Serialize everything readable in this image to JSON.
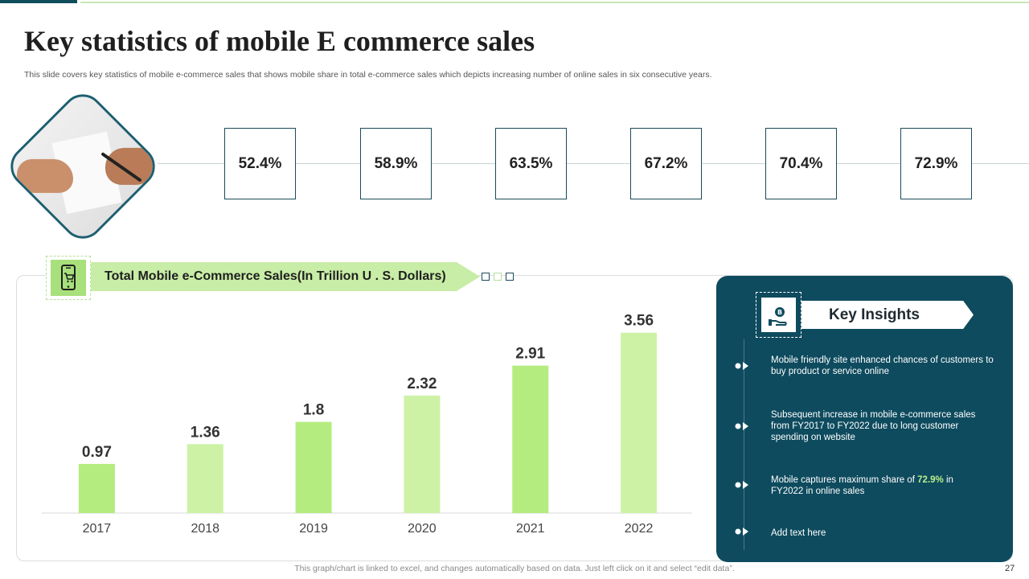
{
  "title": "Key statistics of mobile E commerce sales",
  "subtitle": "This slide covers key statistics of mobile e-commerce sales that shows mobile share in total e-commerce sales which depicts increasing number of online sales in six consecutive years.",
  "mobile_share": [
    "52.4%",
    "58.9%",
    "63.5%",
    "67.2%",
    "70.4%",
    "72.9%"
  ],
  "chart_banner": "Total Mobile e-Commerce Sales(In Trillion U . S. Dollars)",
  "chart_data": {
    "type": "bar",
    "title": "Total Mobile e-Commerce Sales(In Trillion U . S. Dollars)",
    "categories": [
      "2017",
      "2018",
      "2019",
      "2020",
      "2021",
      "2022"
    ],
    "values": [
      0.97,
      1.36,
      1.8,
      2.32,
      2.91,
      3.56
    ],
    "value_labels": [
      "0.97",
      "1.36",
      "1.8",
      "2.32",
      "2.91",
      "3.56"
    ],
    "xlabel": "",
    "ylabel": "",
    "ylim": [
      0,
      4
    ],
    "grid": false,
    "colors": [
      "#b5ec7f",
      "#cdf2a6"
    ]
  },
  "insights": {
    "heading": "Key Insights",
    "item1": "Mobile friendly site enhanced chances of customers to buy product or service online",
    "item2": "Subsequent increase in mobile e-commerce sales from FY2017 to FY2022 due to long customer spending on website",
    "item3_pre": "Mobile captures maximum share of ",
    "item3_highlight": "72.9%",
    "item3_post": " in FY2022 in online sales",
    "item4": "Add text here"
  },
  "footer": "This graph/chart is linked to excel, and changes automatically based on data. Just left click on it and select “edit data”.",
  "page_number": "27",
  "colors": {
    "accent_dark": "#0e4b5e",
    "accent_green": "#b5ec7f",
    "highlight": "#b9f08a"
  },
  "icons": [
    "handshake-photo",
    "phone-cart-icon",
    "bitcoin-hand-icon",
    "bullet-icon"
  ]
}
